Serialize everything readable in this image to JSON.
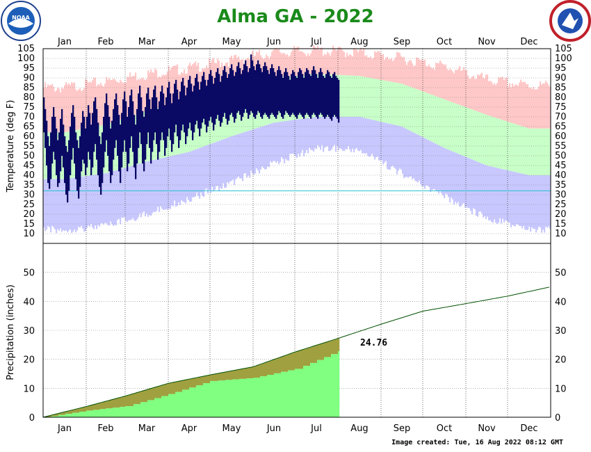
{
  "chart_data": [
    {
      "type": "bar",
      "title": "Alma GA - 2022",
      "ylabel": "Temperature (deg F)",
      "ylim": [
        5,
        105
      ],
      "yticks": [
        10,
        15,
        20,
        25,
        30,
        35,
        40,
        45,
        50,
        55,
        60,
        65,
        70,
        75,
        80,
        85,
        90,
        95,
        100,
        105
      ],
      "months": [
        "Jan",
        "Feb",
        "Mar",
        "Apr",
        "May",
        "Jun",
        "Jul",
        "Aug",
        "Sep",
        "Oct",
        "Nov",
        "Dec"
      ],
      "freezing_line": 32,
      "observed_through_day": 213,
      "normal_high_monthly": [
        62,
        66,
        73,
        79,
        86,
        90,
        92,
        91,
        87,
        79,
        71,
        64
      ],
      "normal_low_monthly": [
        38,
        41,
        47,
        52,
        60,
        67,
        70,
        70,
        65,
        54,
        45,
        40
      ],
      "record_high_monthly": [
        85,
        88,
        92,
        95,
        99,
        103,
        104,
        103,
        100,
        96,
        89,
        86
      ],
      "record_low_monthly": [
        14,
        16,
        22,
        30,
        38,
        48,
        56,
        55,
        43,
        31,
        20,
        14
      ],
      "observed_series": [
        {
          "name": "high",
          "values": [
            80,
            74,
            68,
            60,
            55,
            62,
            70,
            75,
            70,
            64,
            58,
            62,
            69,
            74,
            66,
            60,
            55,
            52,
            58,
            65,
            72,
            76,
            70,
            62,
            58,
            54,
            60,
            67,
            73,
            70,
            64,
            70,
            76,
            72,
            66,
            72,
            78,
            80,
            74,
            67,
            60,
            56,
            62,
            70,
            77,
            82,
            76,
            70,
            64,
            68,
            74,
            79,
            82,
            76,
            71,
            66,
            72,
            79,
            83,
            78,
            70,
            75,
            81,
            84,
            78,
            71,
            66,
            74,
            82,
            86,
            80,
            73,
            70,
            75,
            82,
            85,
            79,
            74,
            80,
            84,
            86,
            80,
            74,
            78,
            83,
            86,
            82,
            76,
            80,
            85,
            88,
            82,
            77,
            82,
            87,
            89,
            84,
            79,
            83,
            88,
            90,
            86,
            81,
            85,
            89,
            91,
            87,
            83,
            86,
            90,
            92,
            88,
            84,
            88,
            91,
            93,
            89,
            86,
            89,
            92,
            94,
            91,
            87,
            90,
            93,
            95,
            92,
            88,
            91,
            94,
            96,
            93,
            90,
            92,
            95,
            97,
            94,
            91,
            93,
            96,
            98,
            95,
            92,
            94,
            97,
            99,
            96,
            93,
            95,
            102,
            99,
            96,
            94,
            97,
            99,
            97,
            95,
            93,
            96,
            98,
            96,
            94,
            92,
            95,
            97,
            95,
            93,
            91,
            94,
            96,
            94,
            92,
            90,
            93,
            95,
            93,
            91,
            89,
            92,
            94,
            93,
            91,
            90,
            93,
            95,
            94,
            92,
            90,
            93,
            95,
            94,
            92,
            91,
            94,
            96,
            94,
            92,
            90,
            93,
            95,
            93,
            91,
            90,
            92,
            94,
            93,
            91,
            90,
            92,
            93,
            91,
            90,
            89
          ]
        },
        {
          "name": "low",
          "values": [
            62,
            54,
            45,
            36,
            33,
            38,
            46,
            52,
            48,
            40,
            34,
            36,
            42,
            50,
            44,
            36,
            30,
            26,
            32,
            40,
            48,
            54,
            46,
            38,
            32,
            28,
            34,
            42,
            48,
            46,
            40,
            44,
            52,
            48,
            40,
            44,
            52,
            56,
            48,
            40,
            34,
            30,
            36,
            44,
            52,
            58,
            50,
            42,
            36,
            40,
            48,
            54,
            58,
            50,
            42,
            36,
            44,
            52,
            58,
            52,
            42,
            46,
            54,
            60,
            52,
            44,
            38,
            46,
            54,
            62,
            56,
            46,
            42,
            48,
            56,
            62,
            54,
            46,
            52,
            58,
            62,
            56,
            48,
            52,
            58,
            62,
            58,
            50,
            54,
            60,
            64,
            58,
            52,
            56,
            62,
            66,
            60,
            54,
            58,
            63,
            66,
            62,
            56,
            60,
            64,
            67,
            63,
            58,
            62,
            66,
            68,
            64,
            60,
            64,
            67,
            69,
            66,
            62,
            65,
            68,
            70,
            67,
            63,
            66,
            69,
            71,
            68,
            65,
            67,
            70,
            72,
            69,
            66,
            68,
            71,
            72,
            70,
            67,
            69,
            72,
            73,
            71,
            68,
            70,
            72,
            74,
            72,
            69,
            71,
            73,
            72,
            70,
            69,
            71,
            73,
            72,
            70,
            69,
            71,
            72,
            71,
            70,
            69,
            71,
            72,
            71,
            70,
            69,
            71,
            73,
            72,
            70,
            69,
            71,
            73,
            72,
            71,
            70,
            71,
            72,
            71,
            70,
            69,
            71,
            72,
            71,
            70,
            69,
            71,
            72,
            71,
            70,
            69,
            71,
            72,
            71,
            70,
            69,
            71,
            72,
            71,
            70,
            69,
            70,
            71,
            70,
            69,
            68,
            70,
            71,
            70,
            69,
            67
          ]
        }
      ],
      "colors": {
        "record_band": "#ffc8c8",
        "normal_band": "#c8ffc8",
        "record_low_band": "#c8c8ff",
        "observed": "#0a0a64",
        "freezing": "#20c0d0",
        "grid": "#808080"
      }
    },
    {
      "type": "area",
      "ylabel": "Precipitation (inches)",
      "ylim": [
        0,
        60
      ],
      "yticks": [
        0,
        10,
        20,
        30,
        40,
        50
      ],
      "months": [
        "Jan",
        "Feb",
        "Mar",
        "Apr",
        "May",
        "Jun",
        "Jul",
        "Aug",
        "Sep",
        "Oct",
        "Nov",
        "Dec"
      ],
      "normal_cumulative_month_start": [
        0,
        3.7,
        7.3,
        11.7,
        14.6,
        17.4,
        22.5,
        27.2,
        32.1,
        36.6,
        39.2,
        41.8,
        45.0
      ],
      "observed_cumulative_month_start": [
        0,
        2.3,
        3.8,
        8.0,
        12.5,
        13.6,
        16.7,
        22.8,
        24.76
      ],
      "observed_through_day": 213,
      "total_label": "24.76",
      "colors": {
        "observed": "#80ff80",
        "deficit": "#a0a040",
        "normal_line": "#005000"
      }
    }
  ],
  "footer": "Image created: Tue, 16 Aug 2022 08:12 GMT",
  "logos": {
    "left": "NOAA",
    "right": "NATIONAL WEATHER SERVICE"
  }
}
